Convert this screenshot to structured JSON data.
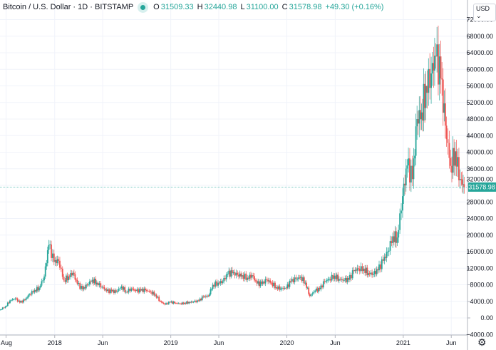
{
  "header": {
    "symbol": "Bitcoin / U.S. Dollar · 1D · BITSTAMP",
    "open_label": "O",
    "open": "31509.33",
    "high_label": "H",
    "high": "32440.98",
    "low_label": "L",
    "low": "31100.00",
    "close_label": "C",
    "close": "31578.98",
    "change": "+49.30 (+0.16%)"
  },
  "currency_button": "USD",
  "settings_icon": "gear-icon",
  "colors": {
    "up": "#26a69a",
    "down": "#ef5350",
    "grid": "#f0f3fa",
    "axis_text": "#131722"
  },
  "chart_data": {
    "type": "candlestick",
    "title": "Bitcoin / U.S. Dollar · 1D · BITSTAMP",
    "ylim": [
      -4000,
      74000
    ],
    "y_ticks": [
      -4000,
      0,
      4000,
      8000,
      12000,
      16000,
      20000,
      24000,
      28000,
      32000,
      36000,
      40000,
      44000,
      48000,
      52000,
      56000,
      60000,
      64000,
      68000,
      72000
    ],
    "y_tick_labels": [
      "−4000.00",
      "0.00",
      "4000.00",
      "8000.00",
      "12000.00",
      "16000.00",
      "20000.00",
      "24000.00",
      "28000.00",
      "32000.00",
      "36000.00",
      "40000.00",
      "44000.00",
      "48000.00",
      "52000.00",
      "56000.00",
      "60000.00",
      "64000.00",
      "68000.00",
      "72000.00"
    ],
    "x_ticks": [
      {
        "date": "2017-08-01",
        "label": "Aug"
      },
      {
        "date": "2018-01-01",
        "label": "2018"
      },
      {
        "date": "2018-06-01",
        "label": "Jun"
      },
      {
        "date": "2019-01-01",
        "label": "2019"
      },
      {
        "date": "2019-06-01",
        "label": "Jun"
      },
      {
        "date": "2020-01-01",
        "label": "2020"
      },
      {
        "date": "2020-06-01",
        "label": "Jun"
      },
      {
        "date": "2021-01-01",
        "label": "2021"
      },
      {
        "date": "2021-06-01",
        "label": "Jun"
      }
    ],
    "xlim": [
      "2017-07-13",
      "2021-07-22"
    ],
    "last_price_label": "31578.98",
    "grid": true,
    "dates": [
      "2017-07-15",
      "2017-08-01",
      "2017-08-15",
      "2017-09-01",
      "2017-09-15",
      "2017-10-01",
      "2017-10-15",
      "2017-11-01",
      "2017-11-15",
      "2017-12-01",
      "2017-12-15",
      "2018-01-01",
      "2018-01-15",
      "2018-02-01",
      "2018-02-15",
      "2018-03-01",
      "2018-03-15",
      "2018-04-01",
      "2018-04-15",
      "2018-05-01",
      "2018-05-15",
      "2018-06-01",
      "2018-06-15",
      "2018-07-01",
      "2018-07-15",
      "2018-08-01",
      "2018-08-15",
      "2018-09-01",
      "2018-09-15",
      "2018-10-01",
      "2018-10-15",
      "2018-11-01",
      "2018-11-15",
      "2018-12-01",
      "2018-12-15",
      "2019-01-01",
      "2019-01-15",
      "2019-02-01",
      "2019-02-15",
      "2019-03-01",
      "2019-03-15",
      "2019-04-01",
      "2019-04-15",
      "2019-05-01",
      "2019-05-15",
      "2019-06-01",
      "2019-06-15",
      "2019-07-01",
      "2019-07-15",
      "2019-08-01",
      "2019-08-15",
      "2019-09-01",
      "2019-09-15",
      "2019-10-01",
      "2019-10-15",
      "2019-11-01",
      "2019-11-15",
      "2019-12-01",
      "2019-12-15",
      "2020-01-01",
      "2020-01-15",
      "2020-02-01",
      "2020-02-15",
      "2020-03-01",
      "2020-03-15",
      "2020-04-01",
      "2020-04-15",
      "2020-05-01",
      "2020-05-15",
      "2020-06-01",
      "2020-06-15",
      "2020-07-01",
      "2020-07-15",
      "2020-08-01",
      "2020-08-15",
      "2020-09-01",
      "2020-09-15",
      "2020-10-01",
      "2020-10-15",
      "2020-11-01",
      "2020-11-15",
      "2020-12-01",
      "2020-12-15",
      "2021-01-01",
      "2021-01-15",
      "2021-02-01",
      "2021-02-15",
      "2021-03-01",
      "2021-03-15",
      "2021-04-01",
      "2021-04-15",
      "2021-05-01",
      "2021-05-15",
      "2021-06-01",
      "2021-06-15",
      "2021-07-01",
      "2021-07-13"
    ],
    "close": [
      2000,
      2750,
      4200,
      4700,
      3700,
      4300,
      5700,
      6700,
      7300,
      10000,
      17600,
      13500,
      13800,
      9100,
      10000,
      10900,
      8200,
      6900,
      8000,
      9200,
      8500,
      7500,
      6500,
      6400,
      6300,
      7600,
      6300,
      7100,
      6500,
      6600,
      6700,
      6300,
      5600,
      4000,
      3250,
      3800,
      3600,
      3450,
      3600,
      3800,
      3900,
      4100,
      5100,
      5300,
      8000,
      8500,
      8800,
      10600,
      10800,
      10400,
      10300,
      9700,
      10300,
      8300,
      8200,
      9200,
      8500,
      7400,
      7100,
      7200,
      8800,
      9400,
      9900,
      8500,
      5300,
      6600,
      6900,
      8800,
      9400,
      10200,
      9400,
      9100,
      9200,
      11300,
      11900,
      11900,
      10800,
      10600,
      11500,
      13800,
      16000,
      19700,
      19400,
      29400,
      36800,
      33500,
      48000,
      49600,
      56000,
      59000,
      63100,
      57800,
      46400,
      36700,
      40200,
      33500,
      31578.98
    ]
  }
}
